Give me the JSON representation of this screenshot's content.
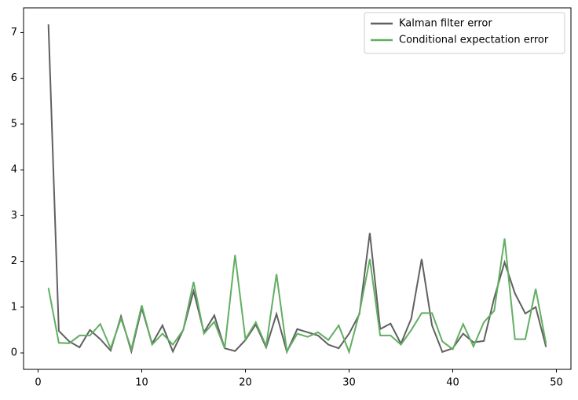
{
  "chart_data": {
    "type": "line",
    "x": [
      1,
      2,
      3,
      4,
      5,
      6,
      7,
      8,
      9,
      10,
      11,
      12,
      13,
      14,
      15,
      16,
      17,
      18,
      19,
      20,
      21,
      22,
      23,
      24,
      25,
      26,
      27,
      28,
      29,
      30,
      31,
      32,
      33,
      34,
      35,
      36,
      37,
      38,
      39,
      40,
      41,
      42,
      43,
      44,
      45,
      46,
      47,
      48,
      49
    ],
    "series": [
      {
        "name": "Kalman filter error",
        "color": "#606060",
        "values": [
          7.18,
          0.48,
          0.25,
          0.12,
          0.5,
          0.3,
          0.05,
          0.8,
          0.03,
          0.98,
          0.2,
          0.6,
          0.03,
          0.5,
          1.35,
          0.45,
          0.82,
          0.1,
          0.04,
          0.28,
          0.62,
          0.12,
          0.85,
          0.02,
          0.52,
          0.45,
          0.38,
          0.18,
          0.1,
          0.42,
          0.85,
          2.62,
          0.52,
          0.64,
          0.2,
          0.75,
          2.05,
          0.6,
          0.02,
          0.1,
          0.42,
          0.23,
          0.26,
          1.2,
          1.98,
          1.3,
          0.86,
          1.0,
          0.13
        ]
      },
      {
        "name": "Conditional expectation error",
        "color": "#62ae62",
        "values": [
          1.42,
          0.22,
          0.21,
          0.38,
          0.38,
          0.63,
          0.1,
          0.75,
          0.08,
          1.04,
          0.18,
          0.42,
          0.18,
          0.5,
          1.55,
          0.42,
          0.68,
          0.1,
          2.14,
          0.3,
          0.67,
          0.15,
          1.72,
          0.03,
          0.42,
          0.35,
          0.45,
          0.28,
          0.6,
          0.02,
          0.88,
          2.05,
          0.38,
          0.38,
          0.18,
          0.5,
          0.87,
          0.87,
          0.25,
          0.08,
          0.63,
          0.14,
          0.67,
          0.92,
          2.5,
          0.3,
          0.3,
          1.4,
          0.2
        ]
      }
    ],
    "xlim": [
      -1.4,
      51.4
    ],
    "ylim": [
      -0.36,
      7.54
    ],
    "xticks": [
      0,
      10,
      20,
      30,
      40,
      50
    ],
    "yticks": [
      0,
      1,
      2,
      3,
      4,
      5,
      6,
      7
    ],
    "legend": "upper right",
    "grid": false
  }
}
